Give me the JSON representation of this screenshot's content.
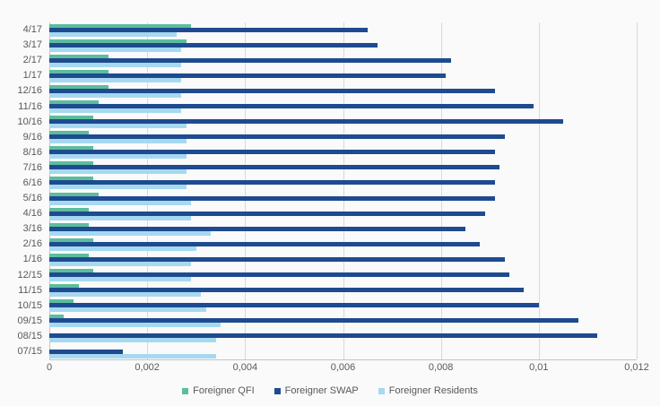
{
  "chart_data": {
    "type": "bar",
    "orientation": "horizontal",
    "title": "",
    "categories": [
      "4/17",
      "3/17",
      "2/17",
      "1/17",
      "12/16",
      "11/16",
      "10/16",
      "9/16",
      "8/16",
      "7/16",
      "6/16",
      "5/16",
      "4/16",
      "3/16",
      "2/16",
      "1/16",
      "12/15",
      "11/15",
      "10/15",
      "09/15",
      "08/15",
      "07/15"
    ],
    "series": [
      {
        "name": "Foreigner QFI",
        "color": "#5CBD9D",
        "values": [
          0.0029,
          0.0028,
          0.0012,
          0.0012,
          0.0012,
          0.001,
          0.0009,
          0.0008,
          0.0009,
          0.0009,
          0.0009,
          0.001,
          0.0008,
          0.0008,
          0.0009,
          0.0008,
          0.0009,
          0.0006,
          0.0005,
          0.0003,
          0,
          0
        ]
      },
      {
        "name": "Foreigner SWAP",
        "color": "#1E4B8F",
        "values": [
          0.0065,
          0.0067,
          0.0082,
          0.0081,
          0.0091,
          0.0099,
          0.0105,
          0.0093,
          0.0091,
          0.0092,
          0.0091,
          0.0091,
          0.0089,
          0.0085,
          0.0088,
          0.0093,
          0.0094,
          0.0097,
          0.01,
          0.0108,
          0.0112,
          0.0015
        ]
      },
      {
        "name": "Foreigner Residents",
        "color": "#A6D9F0",
        "values": [
          0.0026,
          0.0027,
          0.0027,
          0.0027,
          0.0027,
          0.0027,
          0.0028,
          0.0028,
          0.0028,
          0.0028,
          0.0028,
          0.0029,
          0.0029,
          0.0033,
          0.003,
          0.0029,
          0.0029,
          0.0031,
          0.0032,
          0.0035,
          0.0034,
          0.0034
        ]
      }
    ],
    "xlim": [
      0,
      0.012
    ],
    "xticks": [
      {
        "value": 0,
        "label": "0"
      },
      {
        "value": 0.002,
        "label": "0,002"
      },
      {
        "value": 0.004,
        "label": "0,004"
      },
      {
        "value": 0.006,
        "label": "0,006"
      },
      {
        "value": 0.008,
        "label": "0,008"
      },
      {
        "value": 0.01,
        "label": "0,01"
      },
      {
        "value": 0.012,
        "label": "0,012"
      }
    ],
    "grid": true,
    "legend_position": "bottom"
  },
  "colors": {
    "background": "#FAFAFA",
    "gridline": "#D9D9D9",
    "axis_line": "#C4C4C4",
    "text": "#595959"
  }
}
